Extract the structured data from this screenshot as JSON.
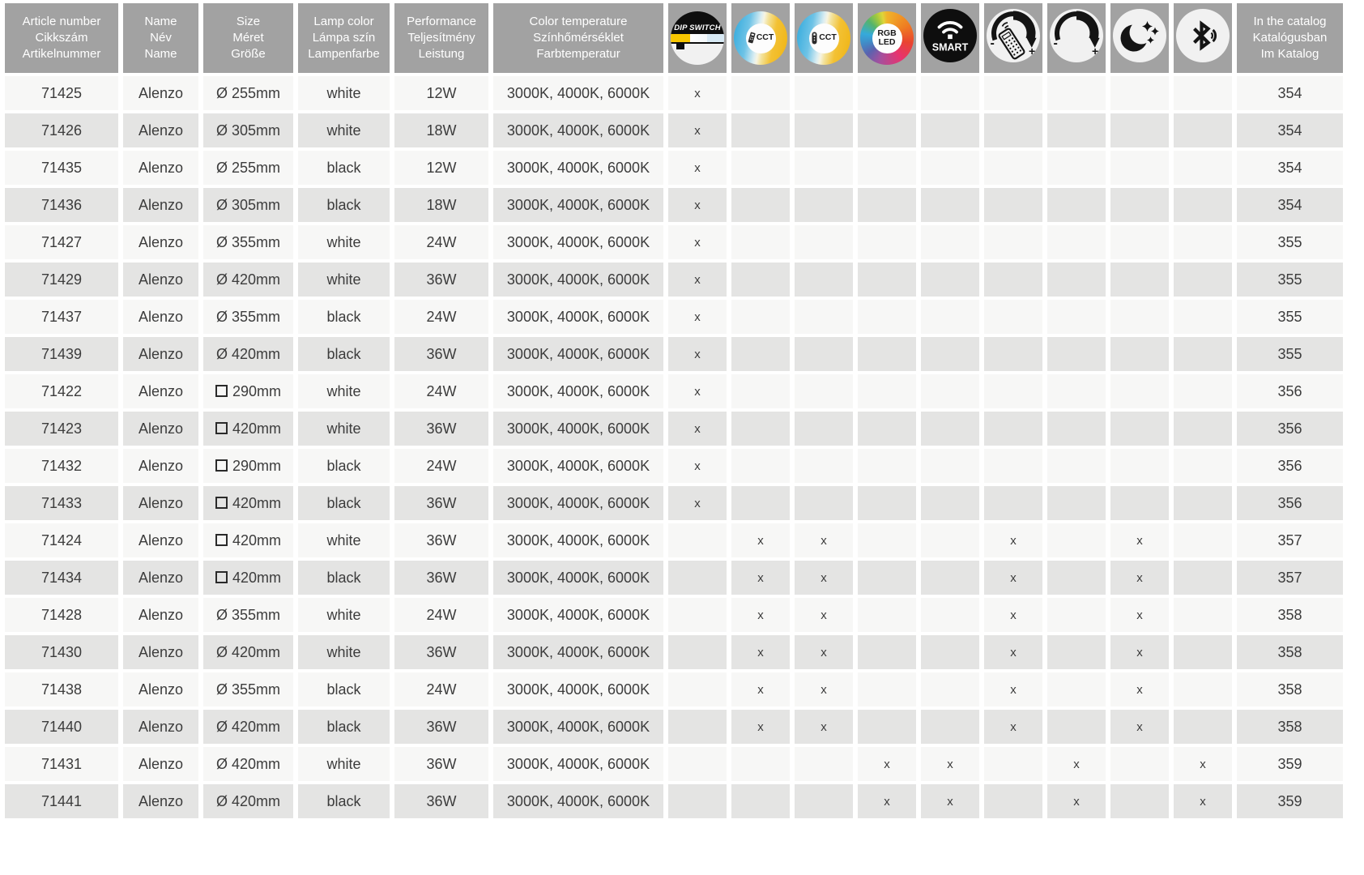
{
  "title_columns": [
    {
      "id": "article-number",
      "lines": [
        "Article number",
        "Cikkszám",
        "Artikelnummer"
      ]
    },
    {
      "id": "name",
      "lines": [
        "Name",
        "Név",
        "Name"
      ]
    },
    {
      "id": "size",
      "lines": [
        "Size",
        "Méret",
        "Größe"
      ]
    },
    {
      "id": "lamp-color",
      "lines": [
        "Lamp color",
        "Lámpa szín",
        "Lampenfarbe"
      ]
    },
    {
      "id": "performance",
      "lines": [
        "Performance",
        "Teljesítmény",
        "Leistung"
      ]
    },
    {
      "id": "color-temperature",
      "lines": [
        "Color temperature",
        "Színhőmérséklet",
        "Farbtemperatur"
      ]
    }
  ],
  "icon_columns": [
    {
      "id": "dip",
      "icon": "dip-switch-icon",
      "label": "DIP SWITCH"
    },
    {
      "id": "cct1",
      "icon": "cct-remote-icon",
      "label": "CCT"
    },
    {
      "id": "cct2",
      "icon": "cct-remote-2-icon",
      "label": "CCT"
    },
    {
      "id": "rgb",
      "icon": "rgb-led-icon",
      "label": "RGB LED"
    },
    {
      "id": "smart",
      "icon": "smart-wifi-icon",
      "label": "SMART"
    },
    {
      "id": "remote",
      "icon": "remote-dimmer-icon",
      "label": ""
    },
    {
      "id": "dimmer",
      "icon": "dimmer-icon",
      "label": ""
    },
    {
      "id": "night",
      "icon": "night-mode-icon",
      "label": ""
    },
    {
      "id": "bt",
      "icon": "bluetooth-icon",
      "label": ""
    }
  ],
  "catalog_column": {
    "id": "in-the-catalog",
    "lines": [
      "In the catalog",
      "Katalógusban",
      "Im Katalog"
    ]
  },
  "feature_marker": "x",
  "rows": [
    {
      "article": "71425",
      "name": "Alenzo",
      "size_shape": "round",
      "size_symbol": "Ø",
      "size": "255mm",
      "lamp_color": "white",
      "performance": "12W",
      "color_temperature": "3000K, 4000K, 6000K",
      "features": [
        "dip"
      ],
      "catalog_page": "354"
    },
    {
      "article": "71426",
      "name": "Alenzo",
      "size_shape": "round",
      "size_symbol": "Ø",
      "size": "305mm",
      "lamp_color": "white",
      "performance": "18W",
      "color_temperature": "3000K, 4000K, 6000K",
      "features": [
        "dip"
      ],
      "catalog_page": "354"
    },
    {
      "article": "71435",
      "name": "Alenzo",
      "size_shape": "round",
      "size_symbol": "Ø",
      "size": "255mm",
      "lamp_color": "black",
      "performance": "12W",
      "color_temperature": "3000K, 4000K, 6000K",
      "features": [
        "dip"
      ],
      "catalog_page": "354"
    },
    {
      "article": "71436",
      "name": "Alenzo",
      "size_shape": "round",
      "size_symbol": "Ø",
      "size": "305mm",
      "lamp_color": "black",
      "performance": "18W",
      "color_temperature": "3000K, 4000K, 6000K",
      "features": [
        "dip"
      ],
      "catalog_page": "354"
    },
    {
      "article": "71427",
      "name": "Alenzo",
      "size_shape": "round",
      "size_symbol": "Ø",
      "size": "355mm",
      "lamp_color": "white",
      "performance": "24W",
      "color_temperature": "3000K, 4000K, 6000K",
      "features": [
        "dip"
      ],
      "catalog_page": "355"
    },
    {
      "article": "71429",
      "name": "Alenzo",
      "size_shape": "round",
      "size_symbol": "Ø",
      "size": "420mm",
      "lamp_color": "white",
      "performance": "36W",
      "color_temperature": "3000K, 4000K, 6000K",
      "features": [
        "dip"
      ],
      "catalog_page": "355"
    },
    {
      "article": "71437",
      "name": "Alenzo",
      "size_shape": "round",
      "size_symbol": "Ø",
      "size": "355mm",
      "lamp_color": "black",
      "performance": "24W",
      "color_temperature": "3000K, 4000K, 6000K",
      "features": [
        "dip"
      ],
      "catalog_page": "355"
    },
    {
      "article": "71439",
      "name": "Alenzo",
      "size_shape": "round",
      "size_symbol": "Ø",
      "size": "420mm",
      "lamp_color": "black",
      "performance": "36W",
      "color_temperature": "3000K, 4000K, 6000K",
      "features": [
        "dip"
      ],
      "catalog_page": "355"
    },
    {
      "article": "71422",
      "name": "Alenzo",
      "size_shape": "square",
      "size_symbol": "□",
      "size": "290mm",
      "lamp_color": "white",
      "performance": "24W",
      "color_temperature": "3000K, 4000K, 6000K",
      "features": [
        "dip"
      ],
      "catalog_page": "356"
    },
    {
      "article": "71423",
      "name": "Alenzo",
      "size_shape": "square",
      "size_symbol": "□",
      "size": "420mm",
      "lamp_color": "white",
      "performance": "36W",
      "color_temperature": "3000K, 4000K, 6000K",
      "features": [
        "dip"
      ],
      "catalog_page": "356"
    },
    {
      "article": "71432",
      "name": "Alenzo",
      "size_shape": "square",
      "size_symbol": "□",
      "size": "290mm",
      "lamp_color": "black",
      "performance": "24W",
      "color_temperature": "3000K, 4000K, 6000K",
      "features": [
        "dip"
      ],
      "catalog_page": "356"
    },
    {
      "article": "71433",
      "name": "Alenzo",
      "size_shape": "square",
      "size_symbol": "□",
      "size": "420mm",
      "lamp_color": "black",
      "performance": "36W",
      "color_temperature": "3000K, 4000K, 6000K",
      "features": [
        "dip"
      ],
      "catalog_page": "356"
    },
    {
      "article": "71424",
      "name": "Alenzo",
      "size_shape": "square",
      "size_symbol": "□",
      "size": "420mm",
      "lamp_color": "white",
      "performance": "36W",
      "color_temperature": "3000K, 4000K, 6000K",
      "features": [
        "cct1",
        "cct2",
        "remote",
        "night"
      ],
      "catalog_page": "357"
    },
    {
      "article": "71434",
      "name": "Alenzo",
      "size_shape": "square",
      "size_symbol": "□",
      "size": "420mm",
      "lamp_color": "black",
      "performance": "36W",
      "color_temperature": "3000K, 4000K, 6000K",
      "features": [
        "cct1",
        "cct2",
        "remote",
        "night"
      ],
      "catalog_page": "357"
    },
    {
      "article": "71428",
      "name": "Alenzo",
      "size_shape": "round",
      "size_symbol": "Ø",
      "size": "355mm",
      "lamp_color": "white",
      "performance": "24W",
      "color_temperature": "3000K, 4000K, 6000K",
      "features": [
        "cct1",
        "cct2",
        "remote",
        "night"
      ],
      "catalog_page": "358"
    },
    {
      "article": "71430",
      "name": "Alenzo",
      "size_shape": "round",
      "size_symbol": "Ø",
      "size": "420mm",
      "lamp_color": "white",
      "performance": "36W",
      "color_temperature": "3000K, 4000K, 6000K",
      "features": [
        "cct1",
        "cct2",
        "remote",
        "night"
      ],
      "catalog_page": "358"
    },
    {
      "article": "71438",
      "name": "Alenzo",
      "size_shape": "round",
      "size_symbol": "Ø",
      "size": "355mm",
      "lamp_color": "black",
      "performance": "24W",
      "color_temperature": "3000K, 4000K, 6000K",
      "features": [
        "cct1",
        "cct2",
        "remote",
        "night"
      ],
      "catalog_page": "358"
    },
    {
      "article": "71440",
      "name": "Alenzo",
      "size_shape": "round",
      "size_symbol": "Ø",
      "size": "420mm",
      "lamp_color": "black",
      "performance": "36W",
      "color_temperature": "3000K, 4000K, 6000K",
      "features": [
        "cct1",
        "cct2",
        "remote",
        "night"
      ],
      "catalog_page": "358"
    },
    {
      "article": "71431",
      "name": "Alenzo",
      "size_shape": "round",
      "size_symbol": "Ø",
      "size": "420mm",
      "lamp_color": "white",
      "performance": "36W",
      "color_temperature": "3000K, 4000K, 6000K",
      "features": [
        "rgb",
        "smart",
        "dimmer",
        "bt"
      ],
      "catalog_page": "359"
    },
    {
      "article": "71441",
      "name": "Alenzo",
      "size_shape": "round",
      "size_symbol": "Ø",
      "size": "420mm",
      "lamp_color": "black",
      "performance": "36W",
      "color_temperature": "3000K, 4000K, 6000K",
      "features": [
        "rgb",
        "smart",
        "dimmer",
        "bt"
      ],
      "catalog_page": "359"
    }
  ],
  "colors": {
    "header_bg": "#a2a2a2",
    "header_text": "#ffffff",
    "row_light": "#f7f7f6",
    "row_dark": "#e4e4e3",
    "cell_text": "#3c3c3c",
    "icon_circle_bg": "#f1f1f1",
    "icon_glyph": "#141414",
    "dip_yellow": "#f7c600",
    "dip_pale_blue": "#d7e9f4",
    "cct_blue": "#2fa8dc",
    "cct_gold": "#efb414"
  }
}
